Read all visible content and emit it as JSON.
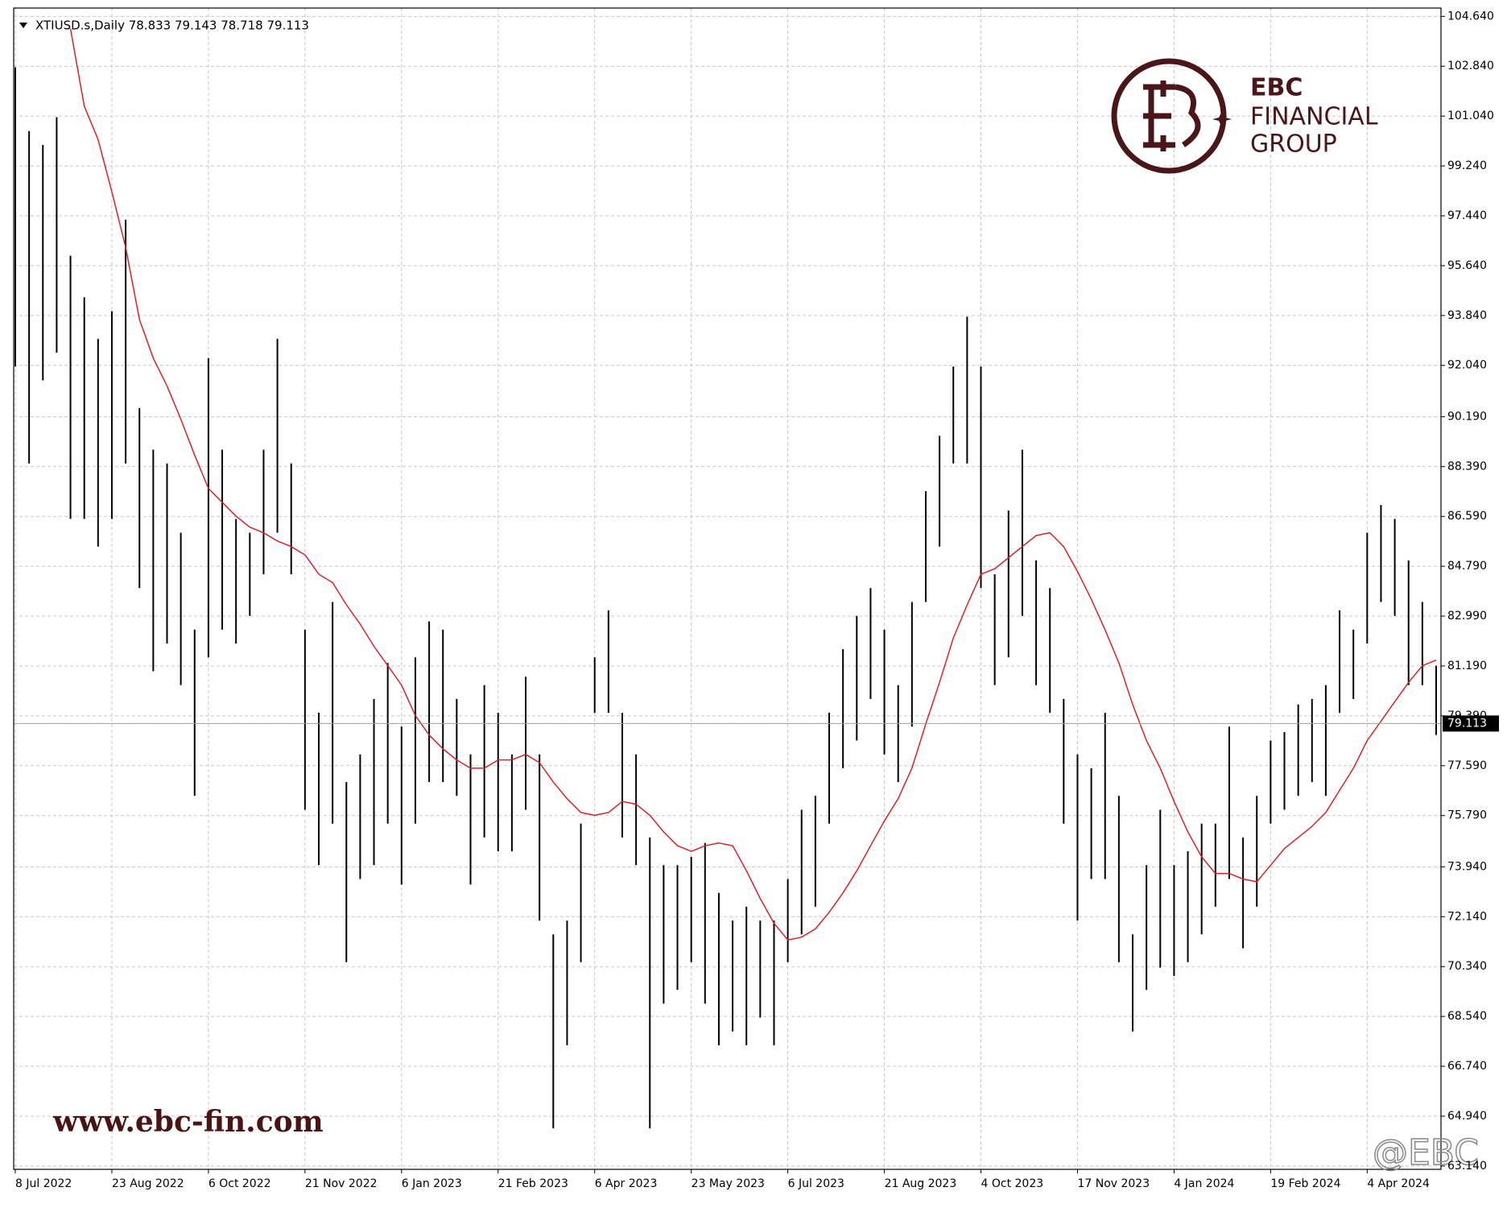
{
  "chart_data": {
    "type": "hlbar",
    "title": "XTIUSD.s,Daily  78.833 79.143 78.718 79.113",
    "categories": [
      "8 Jul 2022",
      null,
      null,
      null,
      null,
      null,
      null,
      "23 Aug 2022",
      null,
      null,
      null,
      null,
      null,
      null,
      "6 Oct 2022",
      null,
      null,
      null,
      null,
      null,
      null,
      "21 Nov 2022",
      null,
      null,
      null,
      null,
      null,
      null,
      "6 Jan 2023",
      null,
      null,
      null,
      null,
      null,
      null,
      "21 Feb 2023",
      null,
      null,
      null,
      null,
      null,
      null,
      "6 Apr 2023",
      null,
      null,
      null,
      null,
      null,
      null,
      "23 May 2023",
      null,
      null,
      null,
      null,
      null,
      null,
      "6 Jul 2023",
      null,
      null,
      null,
      null,
      null,
      null,
      "21 Aug 2023",
      null,
      null,
      null,
      null,
      null,
      null,
      "4 Oct 2023",
      null,
      null,
      null,
      null,
      null,
      null,
      "17 Nov 2023",
      null,
      null,
      null,
      null,
      null,
      null,
      "4 Jan 2024",
      null,
      null,
      null,
      null,
      null,
      null,
      "19 Feb 2024",
      null,
      null,
      null,
      null,
      null,
      null,
      "4 Apr 2024",
      null,
      null,
      null,
      null,
      null
    ],
    "high": [
      102.8,
      100.5,
      100.0,
      101.0,
      96,
      94.5,
      93,
      94,
      97.3,
      90.5,
      89,
      88.5,
      86,
      82.5,
      92.3,
      89,
      86.5,
      86,
      89,
      93,
      88.5,
      82.5,
      79.5,
      83.5,
      77,
      78,
      80,
      81.3,
      79,
      81.5,
      82.8,
      82.5,
      80,
      78,
      80.5,
      79.5,
      78,
      80.8,
      78,
      71.5,
      72,
      75.5,
      81.5,
      83.2,
      79.5,
      78,
      75,
      74,
      74,
      74.3,
      74.8,
      73,
      72,
      72.5,
      72,
      72,
      73.5,
      76,
      76.5,
      79.5,
      81.8,
      83,
      84,
      82.5,
      80.5,
      83.5,
      87.5,
      89.5,
      92,
      93.8,
      92,
      84.5,
      86.8,
      89,
      85,
      84,
      80,
      78,
      77.5,
      79.5,
      76.5,
      71.5,
      74,
      76,
      74,
      74.5,
      75.5,
      75.5,
      79,
      75,
      76.5,
      78.5,
      78.8,
      79.8,
      80,
      80.5,
      83.2,
      82.5,
      86,
      87,
      86.5,
      85,
      83.5,
      81.2
    ],
    "low": [
      92,
      88.5,
      91.5,
      92.5,
      86.5,
      86.5,
      85.5,
      86.5,
      88.5,
      84,
      81,
      82,
      80.5,
      76.5,
      81.5,
      82.5,
      82,
      83,
      84.5,
      86,
      84.5,
      76,
      74,
      75.5,
      70.5,
      73.5,
      74,
      75.5,
      73.3,
      75.5,
      77,
      77,
      76.5,
      73.3,
      75,
      74.5,
      74.5,
      76,
      72,
      64.5,
      67.5,
      70.5,
      79.5,
      79.5,
      75,
      74,
      64.5,
      69,
      69.5,
      70.5,
      69,
      67.5,
      68,
      67.5,
      68.5,
      67.5,
      70.5,
      71.5,
      72.5,
      75.5,
      77.5,
      78.5,
      80,
      78,
      77,
      79,
      83.5,
      85.5,
      88.5,
      88.5,
      84,
      80.5,
      81.5,
      83,
      80.5,
      79.5,
      75.5,
      72,
      73.5,
      73.5,
      70.5,
      68,
      69.5,
      70.3,
      70,
      70.5,
      71.5,
      72.5,
      73.5,
      71,
      72.5,
      75.5,
      76,
      76.5,
      77,
      76.5,
      79.5,
      80,
      82,
      83.5,
      83,
      80.5,
      80.5,
      78.7
    ],
    "bar_color": "#000000",
    "ma": {
      "color": "#e02020",
      "values": [
        null,
        null,
        null,
        null,
        104.2,
        101.4,
        100.2,
        98.3,
        96.3,
        93.7,
        92.3,
        91.3,
        90.1,
        88.8,
        87.6,
        87.1,
        86.6,
        86.2,
        86.0,
        85.7,
        85.5,
        85.2,
        84.5,
        84.2,
        83.4,
        82.7,
        81.9,
        81.2,
        80.5,
        79.4,
        78.7,
        78.2,
        77.8,
        77.5,
        77.5,
        77.8,
        77.8,
        78.0,
        77.7,
        77.0,
        76.4,
        75.9,
        75.8,
        75.9,
        76.3,
        76.2,
        75.8,
        75.2,
        74.7,
        74.5,
        74.7,
        74.8,
        74.7,
        73.8,
        72.8,
        71.9,
        71.3,
        71.4,
        71.7,
        72.3,
        73.0,
        73.8,
        74.7,
        75.6,
        76.4,
        77.5,
        79.1,
        80.6,
        82.2,
        83.4,
        84.5,
        84.7,
        85.1,
        85.5,
        85.9,
        86.0,
        85.5,
        84.6,
        83.6,
        82.5,
        81.3,
        79.8,
        78.5,
        77.5,
        76.3,
        75.2,
        74.3,
        73.7,
        73.7,
        73.5,
        73.4,
        74.0,
        74.6,
        75.0,
        75.4,
        75.9,
        76.7,
        77.5,
        78.5,
        79.2,
        79.9,
        80.6,
        81.2,
        81.4
      ]
    },
    "last_price": 79.113,
    "ylim": [
      63.02,
      104.94
    ],
    "yticks": [
      {
        "value": 104.64,
        "label": "104.640"
      },
      {
        "value": 102.84,
        "label": "102.840"
      },
      {
        "value": 101.04,
        "label": "101.040"
      },
      {
        "value": 99.24,
        "label": "99.240"
      },
      {
        "value": 97.44,
        "label": "97.440"
      },
      {
        "value": 95.64,
        "label": "95.640"
      },
      {
        "value": 93.84,
        "label": "93.840"
      },
      {
        "value": 92.04,
        "label": "92.040"
      },
      {
        "value": 90.19,
        "label": "90.190"
      },
      {
        "value": 88.39,
        "label": "88.390"
      },
      {
        "value": 86.59,
        "label": "86.590"
      },
      {
        "value": 84.79,
        "label": "84.790"
      },
      {
        "value": 82.99,
        "label": "82.990"
      },
      {
        "value": 81.19,
        "label": "81.190"
      },
      {
        "value": 79.39,
        "label": "79.390"
      },
      {
        "value": 77.59,
        "label": "77.590"
      },
      {
        "value": 75.79,
        "label": "75.790"
      },
      {
        "value": 73.94,
        "label": "73.940"
      },
      {
        "value": 72.14,
        "label": "72.140"
      },
      {
        "value": 70.34,
        "label": "70.340"
      },
      {
        "value": 68.54,
        "label": "68.540"
      },
      {
        "value": 66.74,
        "label": "66.740"
      },
      {
        "value": 64.94,
        "label": "64.940"
      },
      {
        "value": 63.14,
        "label": "63.140"
      }
    ],
    "grid": true
  },
  "watermark": {
    "brand": "EBC",
    "line1": "FINANCIAL",
    "line2": "GROUP",
    "url": "www.ebc-fin.com",
    "handle": "@EBC"
  }
}
